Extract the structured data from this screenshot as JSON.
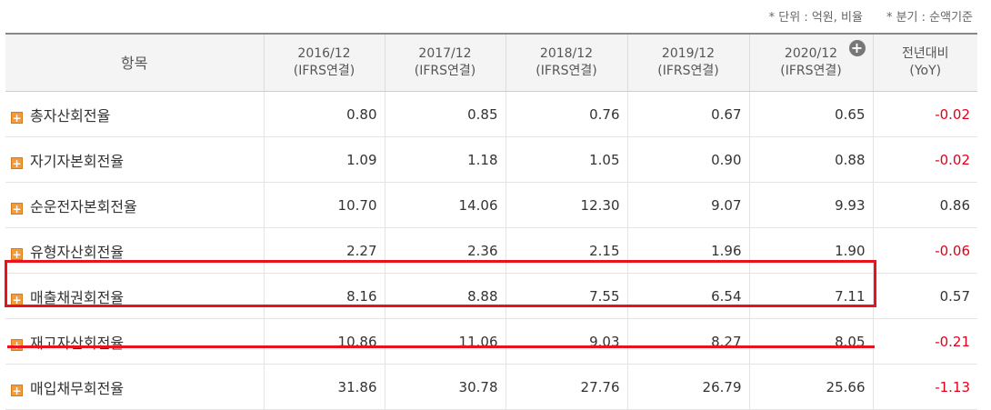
{
  "note": {
    "unit": "* 단위 : 억원, 비율",
    "quarter": "* 분기 : 순액기준"
  },
  "table": {
    "header": {
      "item": "항목",
      "periods": [
        {
          "period": "2016/12",
          "basis": "(IFRS연결)"
        },
        {
          "period": "2017/12",
          "basis": "(IFRS연결)"
        },
        {
          "period": "2018/12",
          "basis": "(IFRS연결)"
        },
        {
          "period": "2019/12",
          "basis": "(IFRS연결)"
        },
        {
          "period": "2020/12",
          "basis": "(IFRS연결)"
        }
      ],
      "yoy": {
        "label": "전년대비",
        "sub": "(YoY)"
      }
    },
    "rows": [
      {
        "label": "총자산회전율",
        "values": [
          "0.80",
          "0.85",
          "0.76",
          "0.67",
          "0.65"
        ],
        "yoy": "-0.02"
      },
      {
        "label": "자기자본회전율",
        "values": [
          "1.09",
          "1.18",
          "1.05",
          "0.90",
          "0.88"
        ],
        "yoy": "-0.02"
      },
      {
        "label": "순운전자본회전율",
        "values": [
          "10.70",
          "14.06",
          "12.30",
          "9.07",
          "9.93"
        ],
        "yoy": "0.86"
      },
      {
        "label": "유형자산회전율",
        "values": [
          "2.27",
          "2.36",
          "2.15",
          "1.96",
          "1.90"
        ],
        "yoy": "-0.06"
      },
      {
        "label": "매출채권회전율",
        "values": [
          "8.16",
          "8.88",
          "7.55",
          "6.54",
          "7.11"
        ],
        "yoy": "0.57"
      },
      {
        "label": "재고자산회전율",
        "values": [
          "10.86",
          "11.06",
          "9.03",
          "8.27",
          "8.05"
        ],
        "yoy": "-0.21"
      },
      {
        "label": "매입채무회전율",
        "values": [
          "31.86",
          "30.78",
          "27.76",
          "26.79",
          "25.66"
        ],
        "yoy": "-1.13"
      }
    ]
  }
}
